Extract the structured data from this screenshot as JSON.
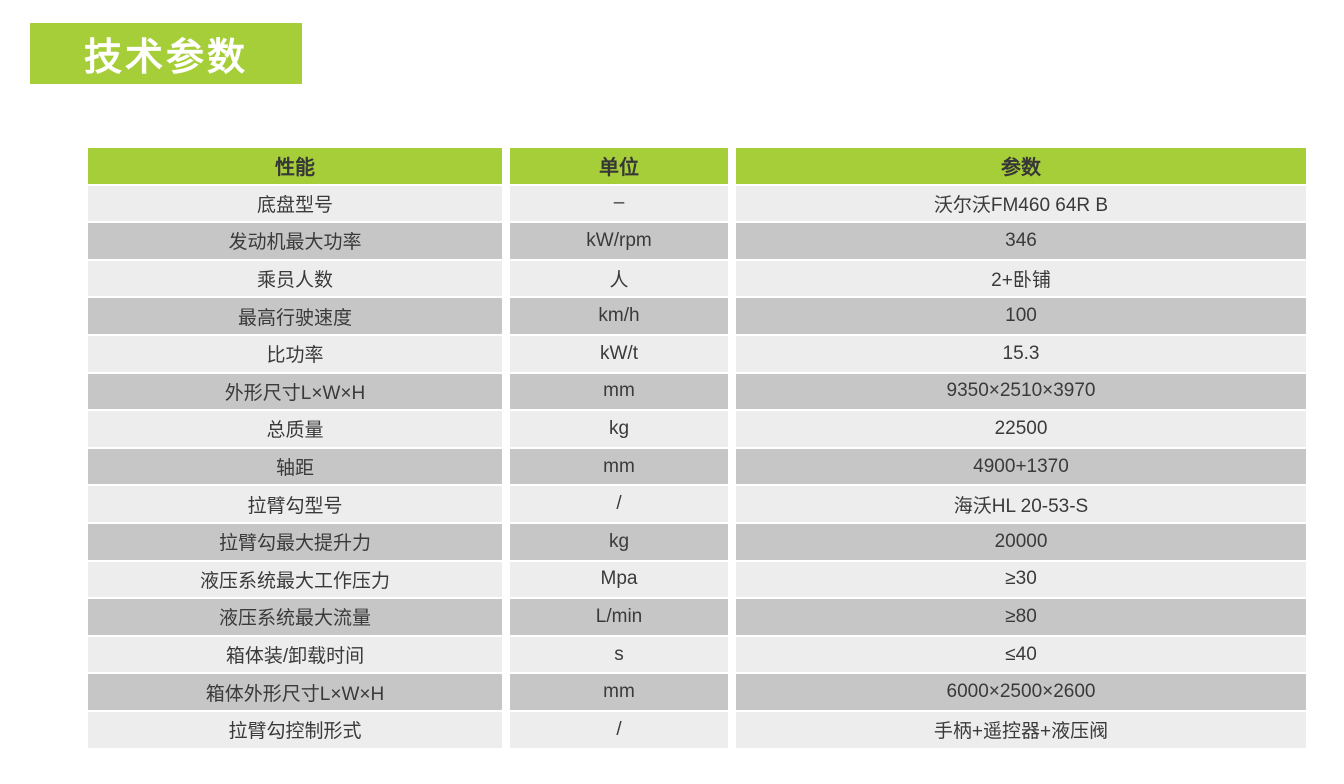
{
  "page_title": "技术参数",
  "table": {
    "headers": [
      "性能",
      "单位",
      "参数"
    ],
    "rows": [
      {
        "name": "底盘型号",
        "unit": "–",
        "value": "沃尔沃FM460 64R B"
      },
      {
        "name": "发动机最大功率",
        "unit": "kW/rpm",
        "value": "346"
      },
      {
        "name": "乘员人数",
        "unit": "人",
        "value": "2+卧铺"
      },
      {
        "name": "最高行驶速度",
        "unit": "km/h",
        "value": "100"
      },
      {
        "name": "比功率",
        "unit": "kW/t",
        "value": "15.3"
      },
      {
        "name": "外形尺寸L×W×H",
        "unit": "mm",
        "value": "9350×2510×3970"
      },
      {
        "name": "总质量",
        "unit": "kg",
        "value": "22500"
      },
      {
        "name": "轴距",
        "unit": "mm",
        "value": "4900+1370"
      },
      {
        "name": "拉臂勾型号",
        "unit": "/",
        "value": "海沃HL 20-53-S"
      },
      {
        "name": "拉臂勾最大提升力",
        "unit": "kg",
        "value": "20000"
      },
      {
        "name": "液压系统最大工作压力",
        "unit": "Mpa",
        "value": "≥30"
      },
      {
        "name": "液压系统最大流量",
        "unit": "L/min",
        "value": "≥80"
      },
      {
        "name": "箱体装/卸载时间",
        "unit": "s",
        "value": "≤40"
      },
      {
        "name": "箱体外形尺寸L×W×H",
        "unit": "mm",
        "value": "6000×2500×2600"
      },
      {
        "name": "拉臂勾控制形式",
        "unit": "/",
        "value": "手柄+遥控器+液压阀"
      }
    ]
  },
  "colors": {
    "accent_green": "#a6ce39",
    "row_light": "#ededee",
    "row_dark": "#c6c6c7",
    "header_text": "#373737",
    "cell_text": "#3a3a3a",
    "badge_text": "#ffffff"
  }
}
